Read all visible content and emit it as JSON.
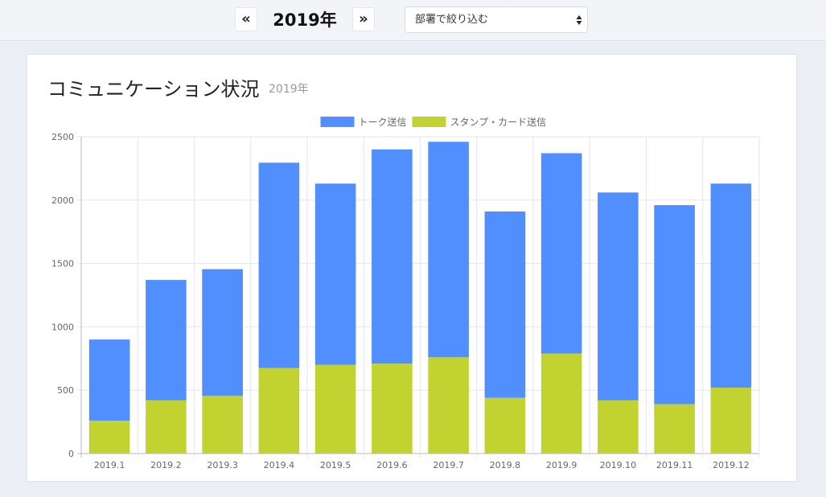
{
  "header": {
    "prev_label": "«",
    "next_label": "»",
    "year": "2019年",
    "filter_placeholder": "部署で絞り込む"
  },
  "card": {
    "title": "コミュニケーション状況",
    "subtitle": "2019年"
  },
  "chart_data": {
    "type": "bar",
    "stacked": true,
    "categories": [
      "2019.1",
      "2019.2",
      "2019.3",
      "2019.4",
      "2019.5",
      "2019.6",
      "2019.7",
      "2019.8",
      "2019.9",
      "2019.10",
      "2019.11",
      "2019.12"
    ],
    "series": [
      {
        "name": "トーク送信",
        "color": "#528ffe",
        "values": [
          640,
          950,
          1000,
          1620,
          1430,
          1690,
          1700,
          1470,
          1580,
          1640,
          1570,
          1610
        ]
      },
      {
        "name": "スタンプ・カード送信",
        "color": "#c2d331",
        "values": [
          260,
          420,
          455,
          675,
          700,
          710,
          760,
          440,
          790,
          420,
          390,
          520
        ]
      }
    ],
    "stack_order": [
      "スタンプ・カード送信",
      "トーク送信"
    ],
    "ylim": [
      0,
      2500
    ],
    "yticks": [
      0,
      500,
      1000,
      1500,
      2000,
      2500
    ],
    "legend": "top-center",
    "grid": true
  }
}
